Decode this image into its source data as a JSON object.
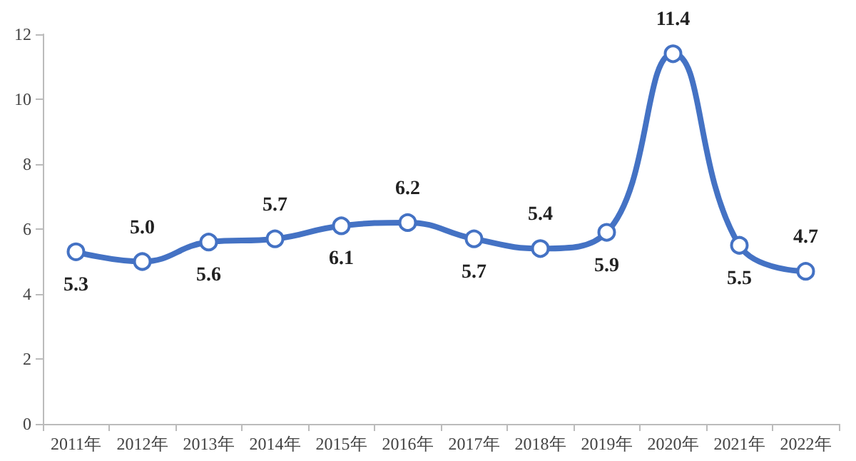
{
  "chart_data": {
    "type": "line",
    "categories": [
      "2011年",
      "2012年",
      "2013年",
      "2014年",
      "2015年",
      "2016年",
      "2017年",
      "2018年",
      "2019年",
      "2020年",
      "2021年",
      "2022年"
    ],
    "series": [
      {
        "color": "#4472c4",
        "values": [
          5.3,
          5.0,
          5.6,
          5.7,
          6.1,
          6.2,
          5.7,
          5.4,
          5.9,
          11.4,
          5.5,
          4.7
        ],
        "value_labels": [
          "5.3",
          "5.0",
          "5.6",
          "5.7",
          "6.1",
          "6.2",
          "5.7",
          "5.4",
          "5.9",
          "11.4",
          "5.5",
          "4.7"
        ]
      }
    ],
    "ylim": [
      0,
      12
    ],
    "yticks": [
      0,
      2,
      4,
      6,
      8,
      10,
      12
    ],
    "grid": false,
    "marker": "circle",
    "line_style": "solid"
  }
}
